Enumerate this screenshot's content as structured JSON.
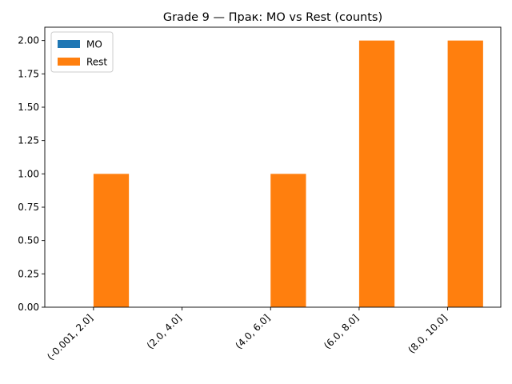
{
  "chart_data": {
    "type": "bar",
    "title": "Grade 9 — Прак: MO vs Rest (counts)",
    "xlabel": "",
    "ylabel": "",
    "categories": [
      "(-0.001, 2.0]",
      "(2.0, 4.0]",
      "(4.0, 6.0]",
      "(6.0, 8.0]",
      "(8.0, 10.0]"
    ],
    "series": [
      {
        "name": "MO",
        "values": [
          0,
          0,
          0,
          0,
          0
        ],
        "color": "#1f77b4"
      },
      {
        "name": "Rest",
        "values": [
          1,
          0,
          1,
          2,
          2
        ],
        "color": "#ff7f0e"
      }
    ],
    "ylim": [
      0,
      2.1
    ],
    "yticks": [
      0.0,
      0.25,
      0.5,
      0.75,
      1.0,
      1.25,
      1.5,
      1.75,
      2.0
    ],
    "ytick_labels": [
      "0.00",
      "0.25",
      "0.50",
      "0.75",
      "1.00",
      "1.25",
      "1.50",
      "1.75",
      "2.00"
    ],
    "grid": false,
    "legend_position": "top-left"
  }
}
